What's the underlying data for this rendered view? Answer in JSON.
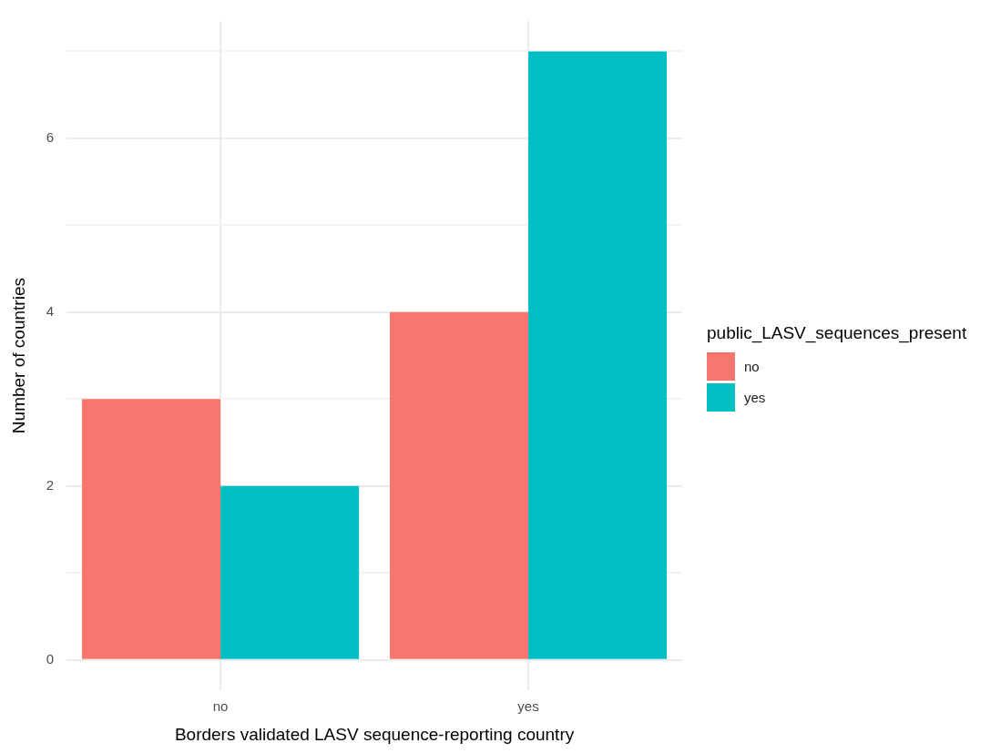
{
  "chart_data": {
    "type": "bar",
    "xlabel": "Borders validated LASV sequence-reporting country",
    "ylabel": "Number of countries",
    "legend_title": "public_LASV_sequences_present",
    "categories": [
      "no",
      "yes"
    ],
    "series": [
      {
        "name": "no",
        "color": "#f8766d",
        "values": [
          3,
          4
        ]
      },
      {
        "name": "yes",
        "color": "#00bfc4",
        "values": [
          2,
          7
        ]
      }
    ],
    "ylim": [
      -0.35,
      7.35
    ],
    "yticks": [
      0,
      {
        "value": 1,
        "label": null
      },
      2,
      {
        "value": 3,
        "label": null
      },
      4,
      {
        "value": 5,
        "label": null
      },
      6,
      {
        "value": 7,
        "label": null
      }
    ],
    "grid": true,
    "legend": "right"
  }
}
